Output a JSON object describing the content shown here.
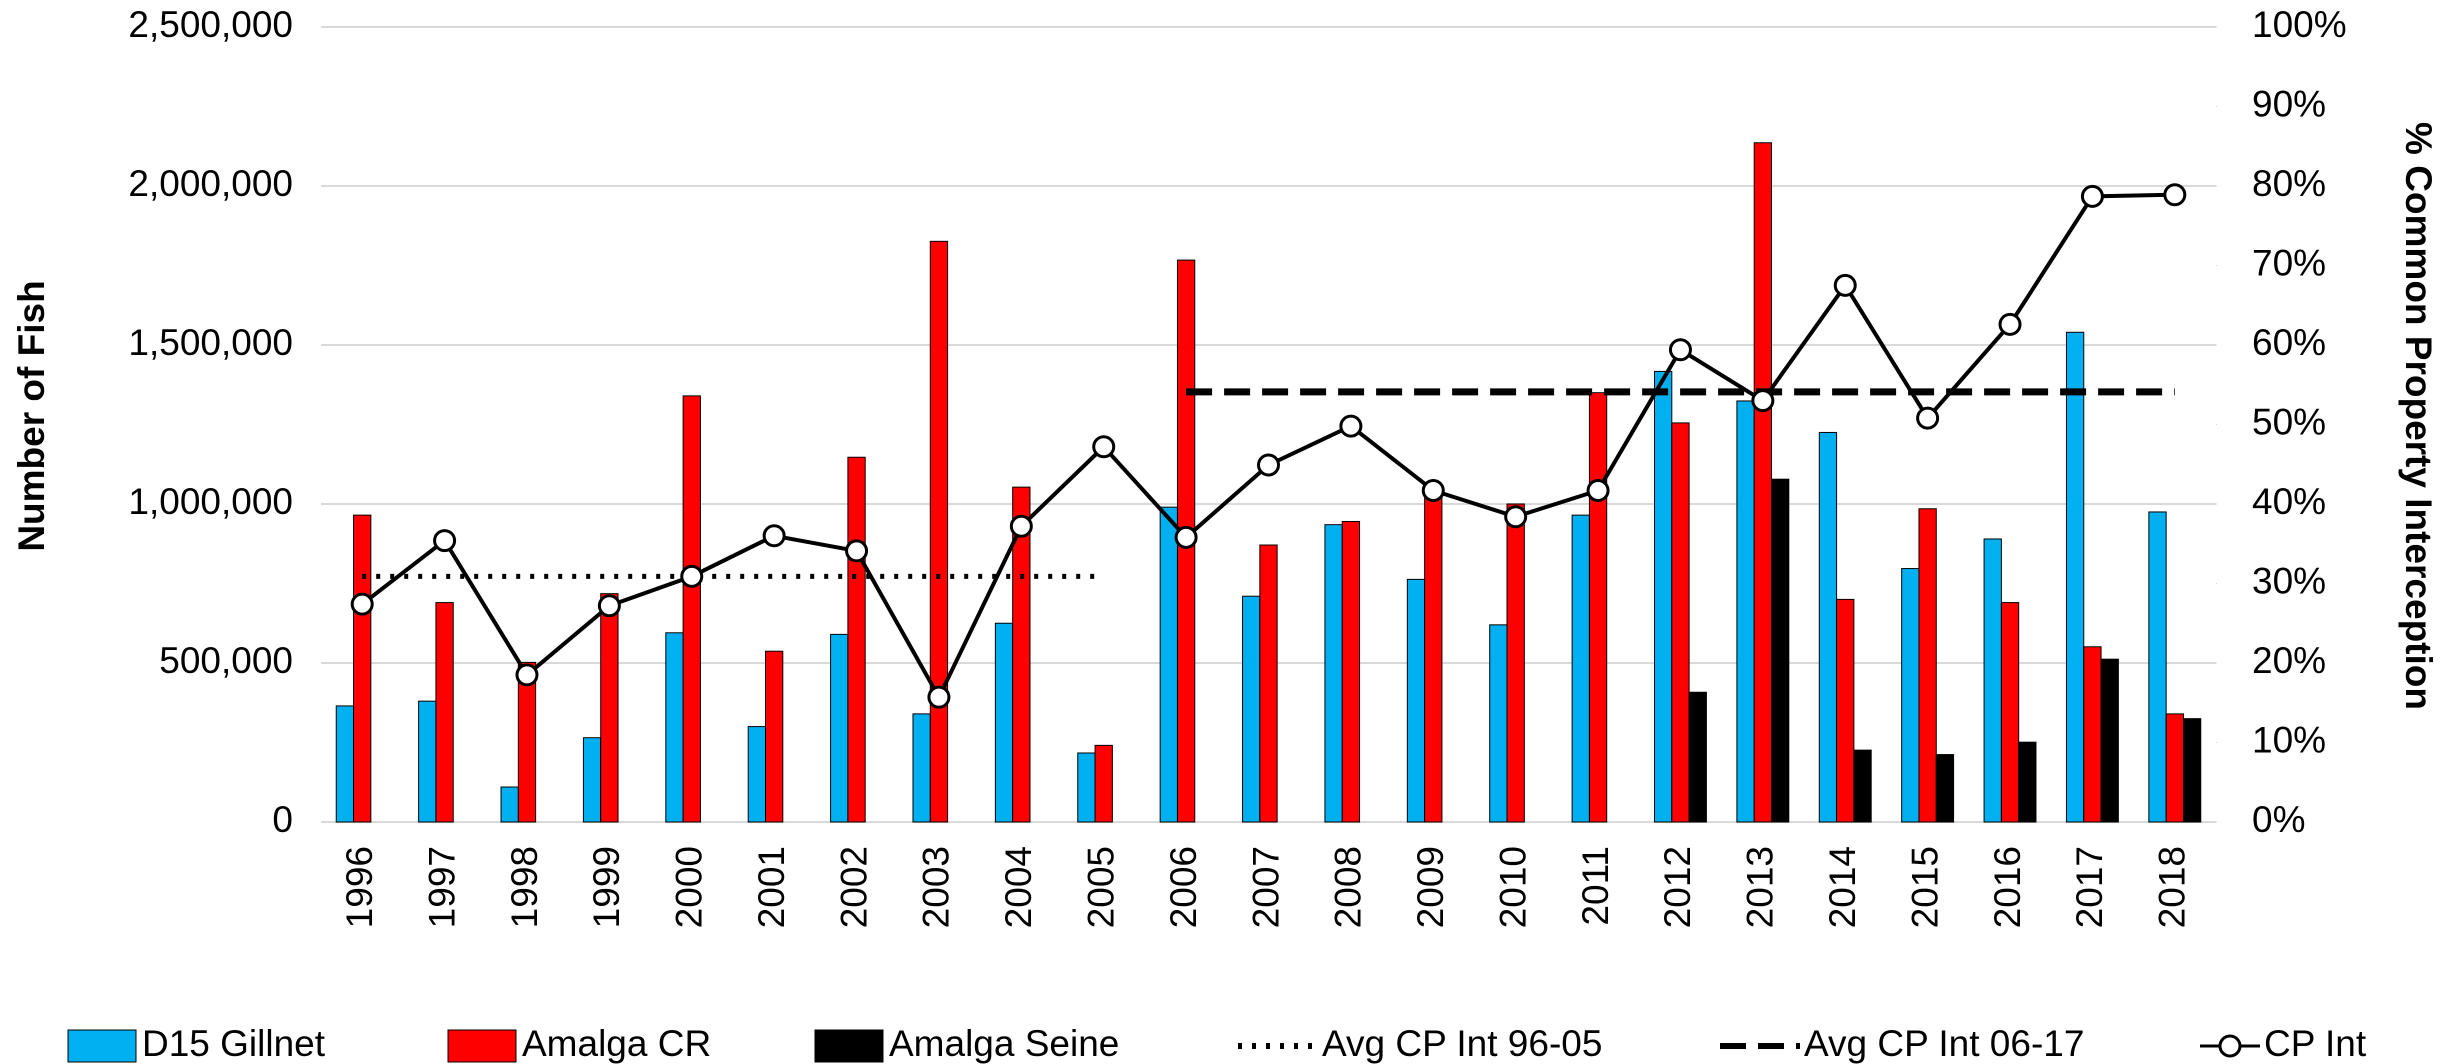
{
  "chart_data": {
    "type": "bar",
    "categories": [
      "1996",
      "1997",
      "1998",
      "1999",
      "2000",
      "2001",
      "2002",
      "2003",
      "2004",
      "2005",
      "2006",
      "2007",
      "2008",
      "2009",
      "2010",
      "2011",
      "2012",
      "2013",
      "2014",
      "2015",
      "2016",
      "2017",
      "2018"
    ],
    "series": [
      {
        "name": "D15 Gillnet",
        "type": "bar",
        "color": "#00b0f0",
        "values": [
          365000,
          380000,
          110000,
          265000,
          595000,
          300000,
          590000,
          340000,
          625000,
          217000,
          990000,
          710000,
          935000,
          763000,
          620000,
          965000,
          1417000,
          1324000,
          1225000,
          797000,
          890000,
          1540000,
          975000
        ]
      },
      {
        "name": "Amalga CR",
        "type": "bar",
        "color": "#ff0000",
        "values": [
          965000,
          690000,
          502000,
          718000,
          1340000,
          537000,
          1147000,
          1826000,
          1053000,
          241000,
          1767000,
          871000,
          945000,
          1048000,
          1000000,
          1350000,
          1255000,
          2136000,
          700000,
          985000,
          690000,
          551000,
          340000
        ]
      },
      {
        "name": "Amalga Seine",
        "type": "bar",
        "color": "#000000",
        "values": [
          0,
          0,
          0,
          0,
          0,
          0,
          0,
          0,
          0,
          0,
          0,
          0,
          0,
          0,
          0,
          0,
          408000,
          1078000,
          226000,
          212000,
          251000,
          512000,
          325000
        ]
      },
      {
        "name": "Avg CP Int 96-05",
        "type": "line",
        "style": "dotted",
        "axis": "y2",
        "color": "#000000",
        "values": [
          30.9,
          30.9,
          30.9,
          30.9,
          30.9,
          30.9,
          30.9,
          30.9,
          30.9,
          30.9,
          null,
          null,
          null,
          null,
          null,
          null,
          null,
          null,
          null,
          null,
          null,
          null,
          null
        ]
      },
      {
        "name": "Avg CP Int 06-17",
        "type": "line",
        "style": "dashed",
        "axis": "y2",
        "color": "#000000",
        "values": [
          null,
          null,
          null,
          null,
          null,
          null,
          null,
          null,
          null,
          null,
          54.1,
          54.1,
          54.1,
          54.1,
          54.1,
          54.1,
          54.1,
          54.1,
          54.1,
          54.1,
          54.1,
          54.1,
          54.1
        ]
      },
      {
        "name": "CP Int",
        "type": "line",
        "style": "markers",
        "axis": "y2",
        "color": "#000000",
        "values": [
          27.4,
          35.4,
          18.5,
          27.2,
          30.9,
          36.0,
          34.1,
          15.7,
          37.2,
          47.2,
          35.8,
          44.9,
          49.8,
          41.7,
          38.4,
          41.7,
          59.4,
          53.0,
          67.5,
          50.8,
          62.6,
          78.7,
          78.9
        ]
      }
    ],
    "ylabel": "Number of Fish",
    "y2label": "% Common Property Interception",
    "ylim": [
      0,
      2500000
    ],
    "yticks": [
      0,
      {
        "value": 500000,
        "label": "500,000"
      },
      {
        "value": 1000000,
        "label": "1,000,000"
      },
      {
        "value": 1500000,
        "label": "1,500,000"
      },
      {
        "value": 2000000,
        "label": "2,000,000"
      },
      {
        "value": 2500000,
        "label": "2,500,000"
      }
    ],
    "y2lim": [
      0,
      100
    ],
    "y2ticks": [
      {
        "value": 0,
        "label": "0%"
      },
      {
        "value": 10,
        "label": "10%"
      },
      {
        "value": 20,
        "label": "20%"
      },
      {
        "value": 30,
        "label": "30%"
      },
      {
        "value": 40,
        "label": "40%"
      },
      {
        "value": 50,
        "label": "50%"
      },
      {
        "value": 60,
        "label": "60%"
      },
      {
        "value": 70,
        "label": "70%"
      },
      {
        "value": 80,
        "label": "80%"
      },
      {
        "value": 90,
        "label": "90%"
      },
      {
        "value": 100,
        "label": "100%"
      }
    ],
    "grid": true,
    "legend": "bottom"
  }
}
